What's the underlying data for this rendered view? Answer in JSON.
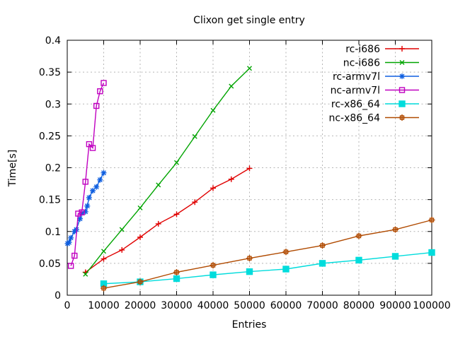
{
  "chart_data": {
    "type": "line",
    "title": "Clixon get single entry",
    "xlabel": "Entries",
    "ylabel": "Time[s]",
    "xlim": [
      0,
      100000
    ],
    "ylim": [
      0,
      0.4
    ],
    "grid": true,
    "legend_position": "top-right-inside",
    "xticks": {
      "values": [
        0,
        10000,
        20000,
        30000,
        40000,
        50000,
        60000,
        70000,
        80000,
        90000,
        100000
      ],
      "labels": [
        "0",
        "10000",
        "20000",
        "30000",
        "40000",
        "50000",
        "60000",
        "70000",
        "80000",
        "90000",
        "100000"
      ]
    },
    "yticks": {
      "values": [
        0,
        0.05,
        0.1,
        0.15,
        0.2,
        0.25,
        0.3,
        0.35,
        0.4
      ],
      "labels": [
        "0",
        "0.05",
        "0.1",
        "0.15",
        "0.2",
        "0.25",
        "0.3",
        "0.35",
        "0.4"
      ]
    },
    "colors": {
      "grid": "#b5b5b5",
      "border": "#000000",
      "text": "#000000"
    },
    "series": [
      {
        "name": "rc-i686",
        "color": "#e00000",
        "marker": "plus",
        "x": [
          5000,
          10000,
          15000,
          20000,
          25000,
          30000,
          35000,
          40000,
          45000,
          50000
        ],
        "y": [
          0.036,
          0.057,
          0.071,
          0.091,
          0.112,
          0.127,
          0.146,
          0.168,
          0.182,
          0.199
        ]
      },
      {
        "name": "nc-i686",
        "color": "#00a400",
        "marker": "cross",
        "x": [
          5000,
          10000,
          15000,
          20000,
          25000,
          30000,
          35000,
          40000,
          45000,
          50000
        ],
        "y": [
          0.033,
          0.069,
          0.103,
          0.137,
          0.173,
          0.208,
          0.249,
          0.29,
          0.328,
          0.356
        ]
      },
      {
        "name": "rc-armv7l",
        "color": "#0f5fe0",
        "marker": "asterisk",
        "x": [
          100,
          500,
          1000,
          2000,
          2500,
          3500,
          4000,
          5000,
          5500,
          6000,
          7000,
          8000,
          9000,
          10000
        ],
        "y": [
          0.081,
          0.083,
          0.09,
          0.1,
          0.103,
          0.12,
          0.129,
          0.131,
          0.14,
          0.153,
          0.164,
          0.17,
          0.181,
          0.192
        ]
      },
      {
        "name": "nc-armv7l",
        "color": "#c000c0",
        "marker": "open-square",
        "x": [
          1000,
          2000,
          3000,
          4000,
          5000,
          6000,
          7000,
          8000,
          9000,
          10000
        ],
        "y": [
          0.046,
          0.062,
          0.128,
          0.13,
          0.178,
          0.237,
          0.231,
          0.297,
          0.32,
          0.333
        ]
      },
      {
        "name": "rc-x86_64",
        "color": "#00dcdc",
        "marker": "filled-square",
        "x": [
          10000,
          20000,
          30000,
          40000,
          50000,
          60000,
          70000,
          80000,
          90000,
          100000
        ],
        "y": [
          0.018,
          0.021,
          0.026,
          0.032,
          0.037,
          0.041,
          0.05,
          0.055,
          0.061,
          0.067
        ]
      },
      {
        "name": "nc-x86_64",
        "color": "#b04a00",
        "marker": "square-plus",
        "x": [
          10000,
          20000,
          30000,
          40000,
          50000,
          60000,
          70000,
          80000,
          90000,
          100000
        ],
        "y": [
          0.011,
          0.021,
          0.036,
          0.047,
          0.058,
          0.068,
          0.078,
          0.093,
          0.103,
          0.118
        ]
      }
    ]
  }
}
